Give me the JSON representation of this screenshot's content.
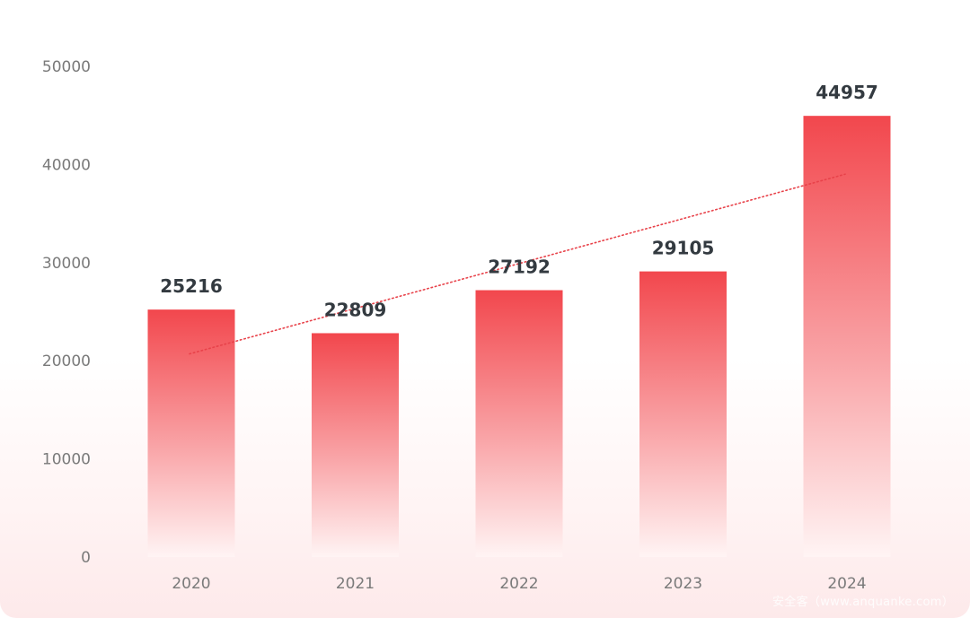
{
  "chart_data": {
    "type": "bar",
    "title": "",
    "xlabel": "",
    "ylabel": "",
    "categories": [
      "2020",
      "2021",
      "2022",
      "2023",
      "2024"
    ],
    "values": [
      25216,
      22809,
      27192,
      29105,
      44957
    ],
    "ylim": [
      0,
      50000
    ],
    "yticks": [
      "0",
      "10000",
      "20000",
      "30000",
      "40000",
      "50000"
    ],
    "data_labels": [
      "25216",
      "22809",
      "27192",
      "29105",
      "44957"
    ],
    "trendline": {
      "type": "linear",
      "style": "dotted",
      "color": "#e8424a"
    },
    "bar_gradient": {
      "top": "#f2474d",
      "bottom": "#fff4f4"
    },
    "grid": false,
    "legend": "none"
  },
  "watermark": "安全客（www.anquanke.com）"
}
